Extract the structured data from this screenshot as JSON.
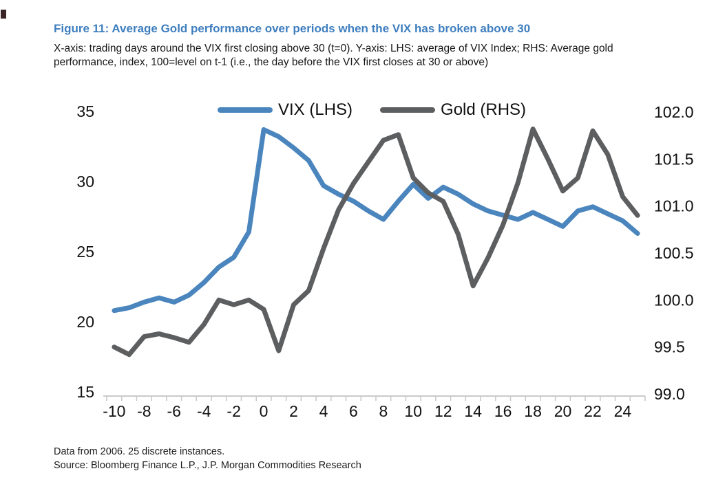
{
  "figure": {
    "title": "Figure 11: Average Gold performance over periods when the VIX has broken above 30",
    "subtitle": "X-axis: trading days around the VIX first closing above 30 (t=0). Y-axis: LHS: average of VIX Index; RHS: Average gold performance, index, 100=level on t-1 (i.e., the day before the VIX first closes at 30 or above)",
    "footnotes": [
      "Data from 2006. 25 discrete instances.",
      "Source: Bloomberg Finance L.P., J.P. Morgan Commodities Research"
    ],
    "title_color": "#3e7ebf"
  },
  "chart_data": {
    "type": "line",
    "x": [
      -10,
      -9,
      -8,
      -7,
      -6,
      -5,
      -4,
      -3,
      -2,
      -1,
      0,
      1,
      2,
      3,
      4,
      5,
      6,
      7,
      8,
      9,
      10,
      11,
      12,
      13,
      14,
      15,
      16,
      17,
      18,
      19,
      20,
      21,
      22,
      23,
      24,
      25
    ],
    "series": [
      {
        "name": "VIX (LHS)",
        "axis": "left",
        "color": "#4a85be",
        "values": [
          20.8,
          21.0,
          21.4,
          21.7,
          21.4,
          21.9,
          22.8,
          23.9,
          24.6,
          26.4,
          33.7,
          33.2,
          32.4,
          31.5,
          29.7,
          29.1,
          28.6,
          27.9,
          27.3,
          28.6,
          29.8,
          28.8,
          29.6,
          29.1,
          28.4,
          27.9,
          27.6,
          27.3,
          27.8,
          27.3,
          26.8,
          27.9,
          28.2,
          27.7,
          27.2,
          26.3
        ]
      },
      {
        "name": "Gold (RHS)",
        "axis": "right",
        "color": "#5d5e60",
        "values": [
          99.5,
          99.42,
          99.61,
          99.64,
          99.6,
          99.55,
          99.74,
          100.0,
          99.95,
          100.0,
          99.9,
          99.46,
          99.95,
          100.1,
          100.55,
          100.96,
          101.24,
          101.47,
          101.7,
          101.76,
          101.3,
          101.14,
          101.05,
          100.7,
          100.15,
          100.45,
          100.8,
          101.25,
          101.82,
          101.5,
          101.16,
          101.3,
          101.8,
          101.55,
          101.1,
          100.9
        ]
      }
    ],
    "x_ticks_labeled": [
      -10,
      -8,
      -6,
      -4,
      -2,
      0,
      2,
      4,
      6,
      8,
      10,
      12,
      14,
      16,
      18,
      20,
      22,
      24
    ],
    "left_axis": {
      "min": 15,
      "max": 35,
      "ticks": [
        15,
        20,
        25,
        30,
        35
      ]
    },
    "right_axis": {
      "min": 99.0,
      "max": 102.0,
      "ticks": [
        99.0,
        99.5,
        100.0,
        100.5,
        101.0,
        101.5,
        102.0
      ]
    },
    "axis_line_color": "#c9cacb",
    "grid": false,
    "legend_position": "top-center",
    "title": "",
    "xlabel": "",
    "ylabel_left": "average of VIX Index",
    "ylabel_right": "Average gold performance, index"
  }
}
